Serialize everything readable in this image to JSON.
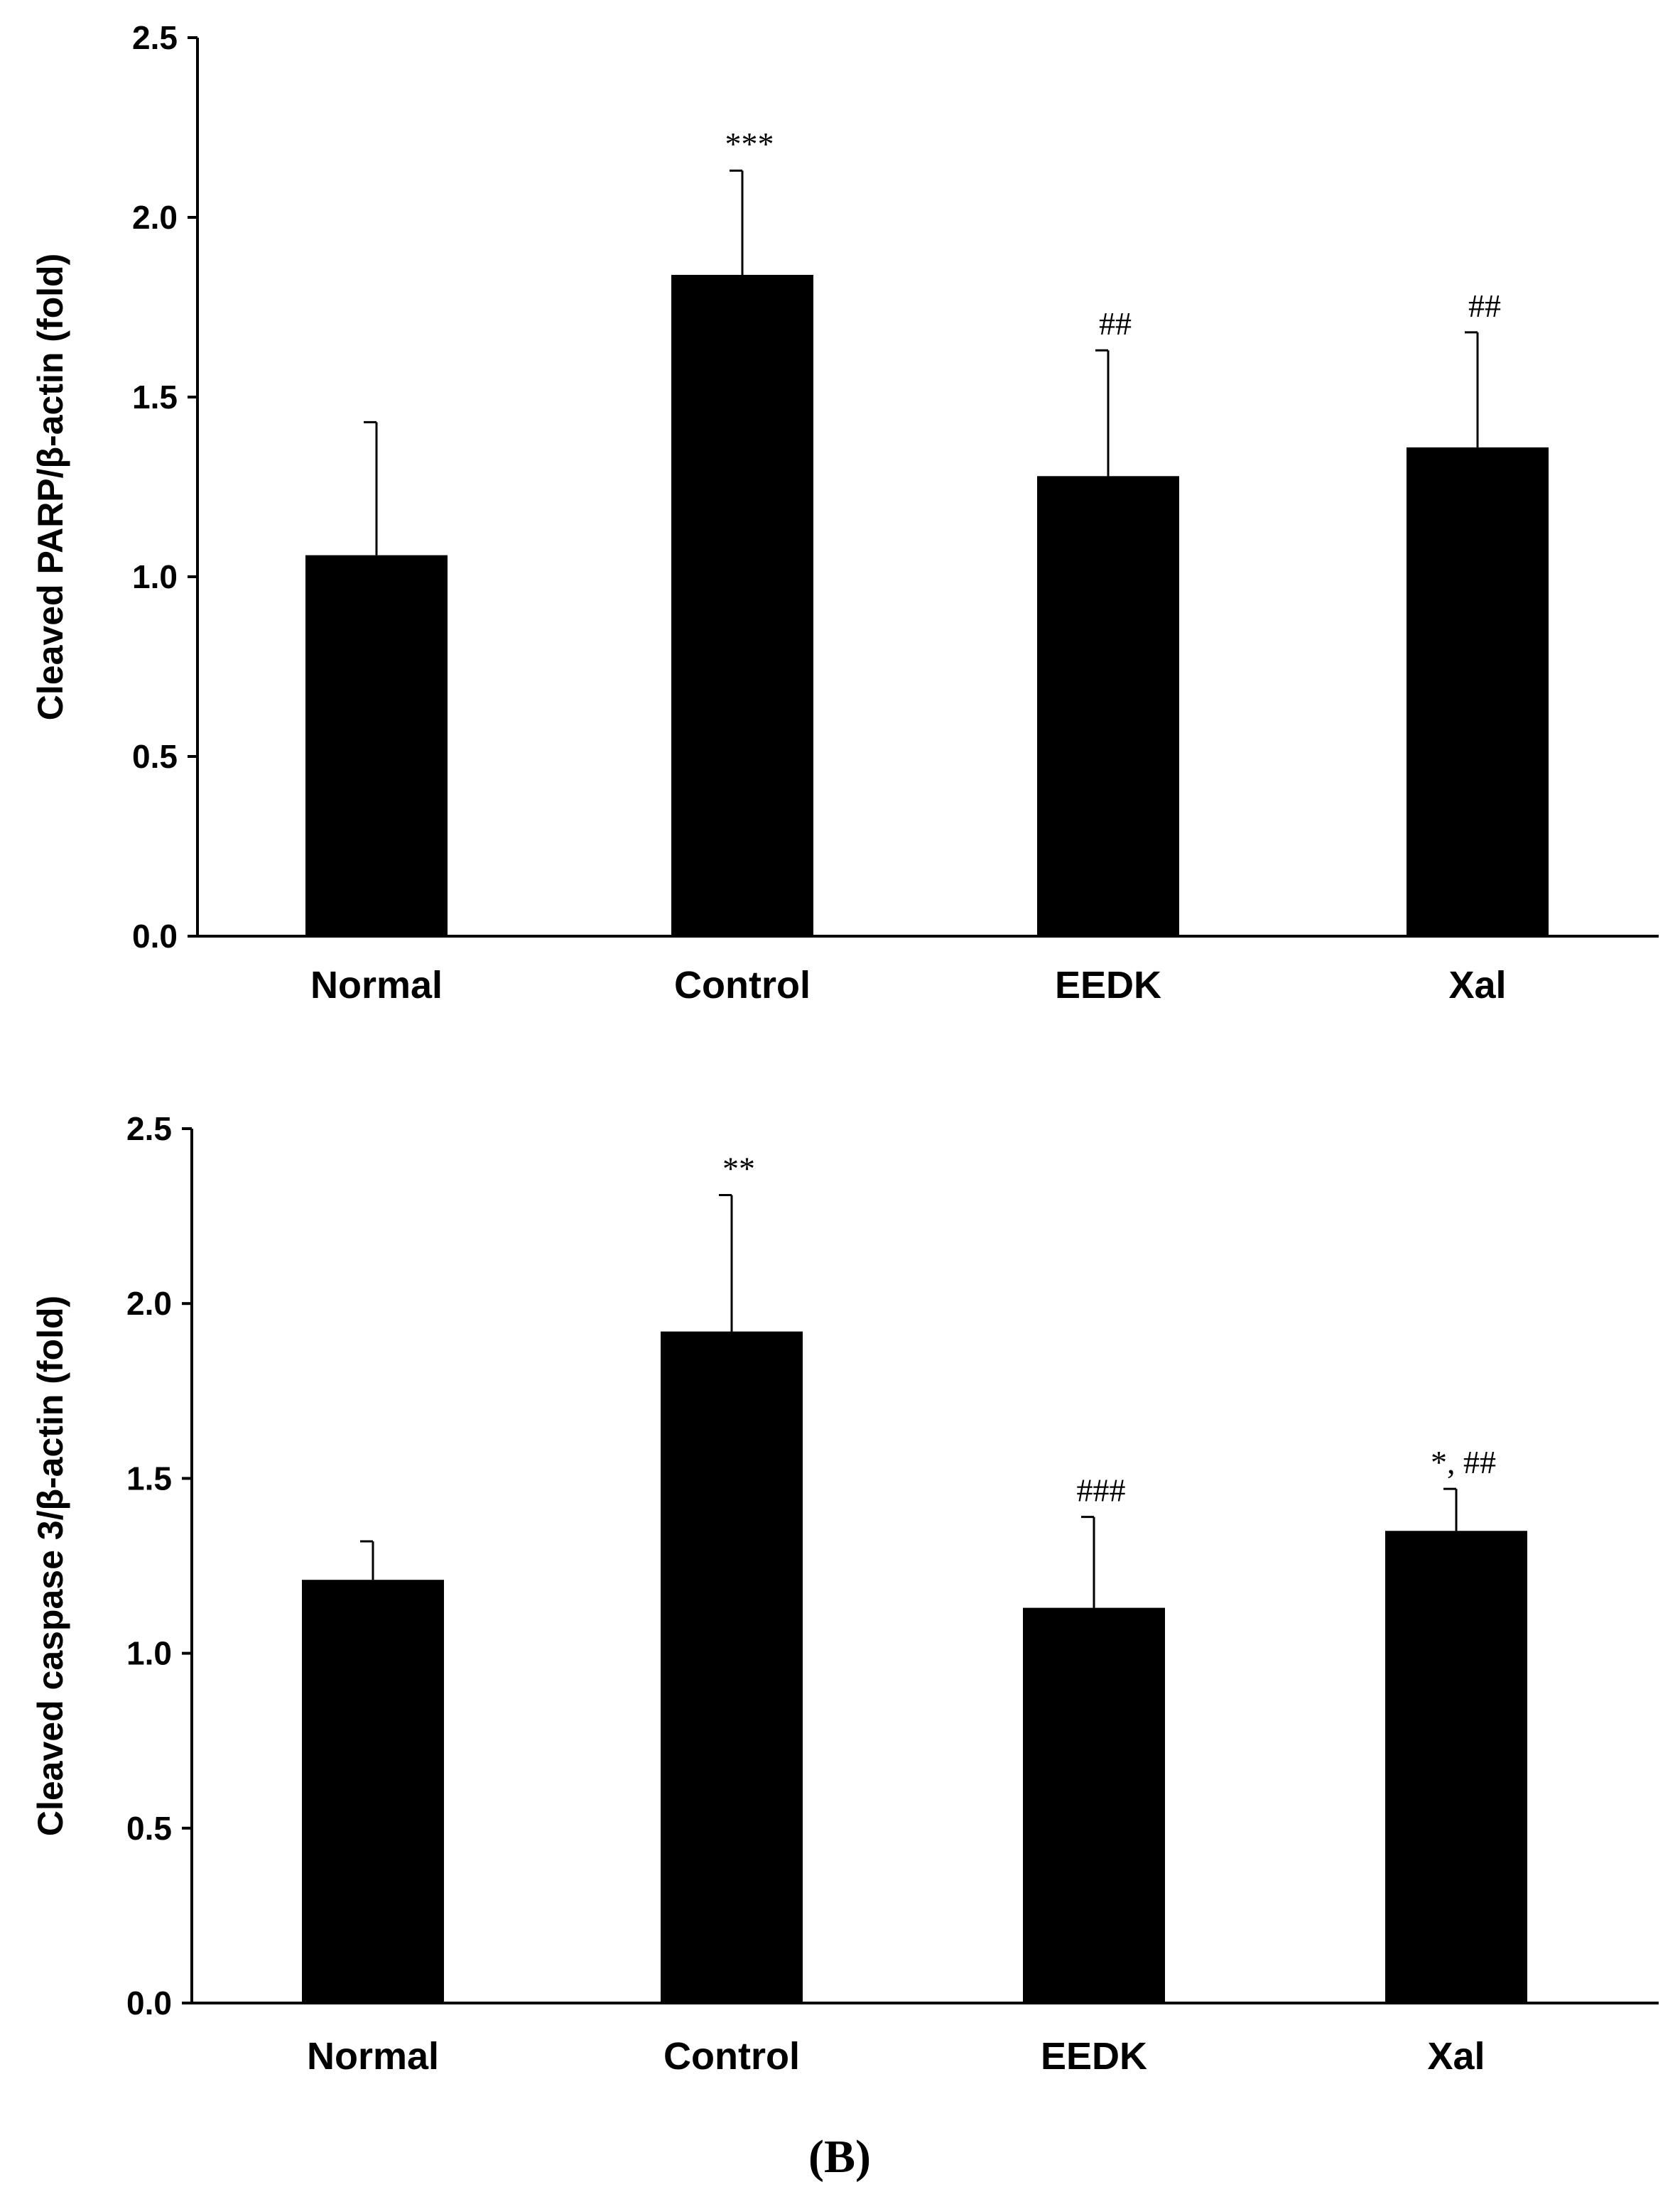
{
  "chart_data": [
    {
      "type": "bar",
      "title": "",
      "ylabel": "Cleaved PARP/β-actin (fold)",
      "ylim": [
        0,
        2.5
      ],
      "yticks": [
        "0.0",
        "0.5",
        "1.0",
        "1.5",
        "2.0",
        "2.5"
      ],
      "categories": [
        "Normal",
        "Control",
        "EEDK",
        "Xal"
      ],
      "values": [
        1.06,
        1.84,
        1.28,
        1.36
      ],
      "errors": [
        0.37,
        0.29,
        0.35,
        0.32
      ],
      "annotations": [
        "",
        "***",
        "##",
        "##"
      ],
      "color": "#000000"
    },
    {
      "type": "bar",
      "title": "",
      "ylabel": "Cleaved caspase 3/β-actin (fold)",
      "ylim": [
        0,
        2.5
      ],
      "yticks": [
        "0.0",
        "0.5",
        "1.0",
        "1.5",
        "2.0",
        "2.5"
      ],
      "categories": [
        "Normal",
        "Control",
        "EEDK",
        "Xal"
      ],
      "values": [
        1.21,
        1.92,
        1.13,
        1.35
      ],
      "errors": [
        0.11,
        0.39,
        0.26,
        0.12
      ],
      "annotations": [
        "",
        "**",
        "###",
        "*, ##"
      ],
      "color": "#000000"
    }
  ],
  "panel_label": "(B)"
}
